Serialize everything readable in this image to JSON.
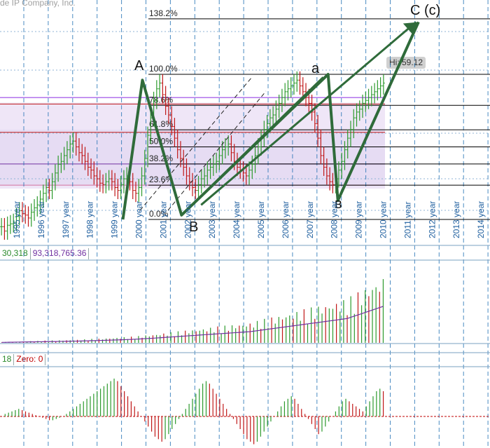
{
  "watermark": "de IP Company, Inc.",
  "hi_badge": "Hi: 59.12",
  "volume_panel": {
    "value1": "30,318",
    "value2": "93,318,765.36",
    "color1": "#2a8a2a",
    "color2": "#7030a0"
  },
  "macd_panel": {
    "value1": "18",
    "zero_label": "Zero: 0",
    "color1": "#2a8a2a",
    "color2": "#c00000"
  },
  "colors": {
    "up": "#2d9a2d",
    "down": "#c01818",
    "wave": "#2f6b3a",
    "grid": "#1f6fb3",
    "fib_line": "#000000"
  },
  "chart_data": {
    "type": "bar",
    "x_labels": [
      "1995 year",
      "1996 year",
      "1997 year",
      "1998 year",
      "1999 year",
      "2000 year",
      "2001 year",
      "2002 year",
      "2003 year",
      "2004 year",
      "2005 year",
      "2006 year",
      "2007 year",
      "2008 year",
      "2009 year",
      "2010 year",
      "2011 year",
      "2012 year",
      "2013 year",
      "2014 year"
    ],
    "fib_levels": [
      {
        "label": "138.2%",
        "value": 138.2
      },
      {
        "label": "100.0%",
        "value": 100.0
      },
      {
        "label": "78.6%",
        "value": 78.6
      },
      {
        "label": "61.8%",
        "value": 61.8
      },
      {
        "label": "50.0%",
        "value": 50.0
      },
      {
        "label": "38.2%",
        "value": 38.2
      },
      {
        "label": "23.6%",
        "value": 23.6
      },
      {
        "label": "0.0%",
        "value": 0.0
      }
    ],
    "wave_labels": [
      {
        "label": "A",
        "year": 2000.2,
        "level": 100
      },
      {
        "label": "B",
        "year": 2002.0,
        "level": -2
      },
      {
        "label": "a",
        "year": 2007.6,
        "level": 100
      },
      {
        "label": "в",
        "year": 2008.5,
        "level": 10
      },
      {
        "label": "C (c)",
        "year": 2011.5,
        "level": 138.2
      }
    ],
    "wave_path": [
      {
        "year": 1999.4,
        "level": 0
      },
      {
        "year": 2000.2,
        "level": 96
      },
      {
        "year": 2001.8,
        "level": 3
      },
      {
        "year": 2007.8,
        "level": 100
      },
      {
        "year": 2008.2,
        "level": 13
      },
      {
        "year": 2011.5,
        "level": 136
      }
    ],
    "series": [
      {
        "name": "price",
        "values": [
          -5,
          -8,
          -4,
          -3,
          -2,
          2,
          6,
          4,
          3,
          1,
          5,
          8,
          10,
          14,
          18,
          22,
          20,
          26,
          32,
          38,
          40,
          44,
          48,
          52,
          54,
          50,
          46,
          44,
          40,
          36,
          34,
          30,
          28,
          25,
          24,
          26,
          28,
          26,
          22,
          20,
          24,
          28,
          30,
          26,
          20,
          18,
          22,
          30,
          42,
          58,
          70,
          82,
          90,
          94,
          86,
          78,
          72,
          64,
          56,
          48,
          42,
          36,
          30,
          26,
          22,
          20,
          24,
          28,
          30,
          34,
          36,
          38,
          40,
          44,
          48,
          50,
          52,
          46,
          40,
          36,
          34,
          32,
          30,
          34,
          38,
          44,
          50,
          56,
          62,
          66,
          70,
          72,
          76,
          80,
          84,
          88,
          90,
          92,
          94,
          96,
          92,
          88,
          84,
          80,
          74,
          66,
          56,
          44,
          36,
          30,
          26,
          24,
          28,
          34,
          40,
          48,
          56,
          62,
          70,
          74,
          76,
          80,
          82,
          84,
          86,
          88,
          90,
          92,
          94
        ]
      }
    ],
    "volume_values": [
      4,
      4,
      5,
      5,
      6,
      6,
      7,
      7,
      8,
      8,
      9,
      9,
      10,
      10,
      11,
      11,
      12,
      12,
      13,
      13,
      14,
      14,
      15,
      16,
      17,
      18,
      18,
      19,
      20,
      21,
      22,
      23,
      24,
      25,
      26,
      27,
      28,
      30,
      31,
      33,
      35,
      36,
      38,
      40,
      42,
      44,
      46,
      48,
      50,
      52,
      54,
      56,
      58,
      60,
      62,
      64,
      66,
      68,
      70,
      72,
      74,
      76,
      78,
      80,
      82,
      84,
      86,
      88,
      90,
      92,
      96,
      100,
      104,
      108,
      112,
      116,
      120,
      124,
      128,
      132,
      136,
      140,
      144,
      148,
      152,
      156,
      160,
      164,
      168,
      172,
      176,
      180,
      184,
      188,
      192,
      196,
      200,
      210,
      220,
      230,
      240,
      250,
      260,
      270,
      280,
      290,
      300
    ],
    "macd_values": [
      0,
      2,
      3,
      4,
      5,
      6,
      5,
      4,
      3,
      2,
      1,
      0,
      -1,
      -2,
      -3,
      -3,
      -2,
      -1,
      0,
      2,
      4,
      6,
      8,
      10,
      12,
      14,
      16,
      18,
      20,
      22,
      24,
      26,
      28,
      30,
      28,
      24,
      20,
      16,
      12,
      8,
      4,
      0,
      -4,
      -8,
      -12,
      -16,
      -18,
      -20,
      -18,
      -14,
      -10,
      -6,
      -2,
      2,
      6,
      10,
      14,
      18,
      22,
      26,
      28,
      26,
      22,
      18,
      14,
      10,
      6,
      2,
      -2,
      -6,
      -10,
      -14,
      -18,
      -20,
      -22,
      -20,
      -16,
      -12,
      -8,
      -4,
      0,
      4,
      8,
      12,
      14,
      16,
      14,
      10,
      6,
      2,
      -2,
      -6,
      -10,
      -14,
      -12,
      -8,
      -4,
      0,
      4,
      8,
      12,
      14,
      12,
      10,
      8,
      6,
      4,
      8,
      12,
      16,
      20,
      22,
      20
    ],
    "ylim": [
      -10,
      145
    ]
  }
}
